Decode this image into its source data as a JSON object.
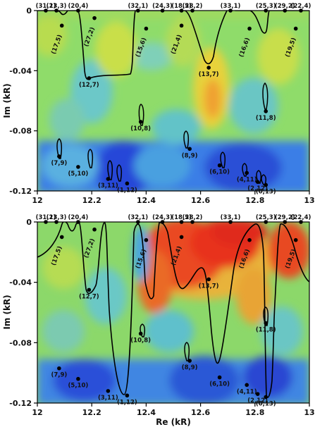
{
  "chart_data": [
    {
      "type": "heatmap",
      "xlabel": "",
      "ylabel": "Im (kR)",
      "xlim": [
        12,
        13
      ],
      "ylim": [
        -0.12,
        0
      ],
      "xticks": [
        12,
        12.2,
        12.4,
        12.6,
        12.8,
        13
      ],
      "yticks": [
        0,
        -0.04,
        -0.08,
        -0.12
      ],
      "xtick_labels": [
        "12",
        "12.2",
        "12.4",
        "12.6",
        "12.8",
        "13"
      ],
      "ytick_labels": [
        "0",
        "-0.04",
        "-0.08",
        "-0.12"
      ],
      "colors": {
        "low": "#1f3fcf",
        "mid": "#5fd66a",
        "high": "#e0201a"
      },
      "labels": [
        {
          "text": "(31,1)",
          "x": 12.0,
          "y": 0.0
        },
        {
          "text": "(23,3)",
          "x": 12.07,
          "y": 0.0
        },
        {
          "text": "(17,5)",
          "x": 12.09,
          "y": -0.01
        },
        {
          "text": "(20,4)",
          "x": 12.15,
          "y": 0.0
        },
        {
          "text": "(27,2)",
          "x": 12.21,
          "y": -0.005
        },
        {
          "text": "(32,1)",
          "x": 12.37,
          "y": 0.0
        },
        {
          "text": "(15,6)",
          "x": 12.4,
          "y": -0.012
        },
        {
          "text": "(24,3)",
          "x": 12.46,
          "y": 0.0
        },
        {
          "text": "(21,4)",
          "x": 12.53,
          "y": -0.01
        },
        {
          "text": "(18,5)",
          "x": 12.53,
          "y": 0.0
        },
        {
          "text": "(28,2)",
          "x": 12.57,
          "y": 0.0
        },
        {
          "text": "(33,1)",
          "x": 12.71,
          "y": 0.0
        },
        {
          "text": "(16,6)",
          "x": 12.78,
          "y": -0.012
        },
        {
          "text": "(25,3)",
          "x": 12.84,
          "y": 0.0
        },
        {
          "text": "(29,2)",
          "x": 12.91,
          "y": 0.0
        },
        {
          "text": "(19,5)",
          "x": 12.95,
          "y": -0.012
        },
        {
          "text": "(22,4)",
          "x": 12.97,
          "y": 0.0
        },
        {
          "text": "(12,7)",
          "x": 12.19,
          "y": -0.045
        },
        {
          "text": "(13,7)",
          "x": 12.63,
          "y": -0.038
        },
        {
          "text": "(10,8)",
          "x": 12.38,
          "y": -0.074
        },
        {
          "text": "(11,8)",
          "x": 12.84,
          "y": -0.067
        },
        {
          "text": "(7,9)",
          "x": 12.08,
          "y": -0.097
        },
        {
          "text": "(8,9)",
          "x": 12.56,
          "y": -0.092
        },
        {
          "text": "(5,10)",
          "x": 12.15,
          "y": -0.104
        },
        {
          "text": "(6,10)",
          "x": 12.67,
          "y": -0.103
        },
        {
          "text": "(3,11)",
          "x": 12.26,
          "y": -0.112
        },
        {
          "text": "(4,11)",
          "x": 12.77,
          "y": -0.108
        },
        {
          "text": "(1,12)",
          "x": 12.33,
          "y": -0.115
        },
        {
          "text": "(2,12)",
          "x": 12.81,
          "y": -0.114
        },
        {
          "text": "(0,13)",
          "x": 12.84,
          "y": -0.116
        }
      ]
    },
    {
      "type": "heatmap",
      "xlabel": "Re (kR)",
      "ylabel": "Im (kR)",
      "xlim": [
        12,
        13
      ],
      "ylim": [
        -0.12,
        0
      ],
      "xticks": [
        12,
        12.2,
        12.4,
        12.6,
        12.8,
        13
      ],
      "yticks": [
        0,
        -0.04,
        -0.08,
        -0.12
      ],
      "xtick_labels": [
        "12",
        "12.2",
        "12.4",
        "12.6",
        "12.8",
        "13"
      ],
      "ytick_labels": [
        "0",
        "-0.04",
        "-0.08",
        "-0.12"
      ],
      "colors": {
        "low": "#1f3fcf",
        "mid": "#5fd66a",
        "high": "#e0201a"
      },
      "labels": [
        {
          "text": "(31,1)",
          "x": 12.0,
          "y": 0.0
        },
        {
          "text": "(23,3)",
          "x": 12.07,
          "y": 0.0
        },
        {
          "text": "(17,5)",
          "x": 12.09,
          "y": -0.01
        },
        {
          "text": "(20,4)",
          "x": 12.15,
          "y": 0.0
        },
        {
          "text": "(27,2)",
          "x": 12.21,
          "y": -0.005
        },
        {
          "text": "(32,1)",
          "x": 12.37,
          "y": 0.0
        },
        {
          "text": "(15,6)",
          "x": 12.4,
          "y": -0.012
        },
        {
          "text": "(24,3)",
          "x": 12.46,
          "y": 0.0
        },
        {
          "text": "(21,4)",
          "x": 12.53,
          "y": -0.01
        },
        {
          "text": "(18,5)",
          "x": 12.53,
          "y": 0.0
        },
        {
          "text": "(28,2)",
          "x": 12.57,
          "y": 0.0
        },
        {
          "text": "(33,1)",
          "x": 12.71,
          "y": 0.0
        },
        {
          "text": "(16,6)",
          "x": 12.78,
          "y": -0.012
        },
        {
          "text": "(25,3)",
          "x": 12.84,
          "y": 0.0
        },
        {
          "text": "(29,2)",
          "x": 12.91,
          "y": 0.0
        },
        {
          "text": "(19,5)",
          "x": 12.95,
          "y": -0.012
        },
        {
          "text": "(22,4)",
          "x": 12.97,
          "y": 0.0
        },
        {
          "text": "(12,7)",
          "x": 12.19,
          "y": -0.045
        },
        {
          "text": "(13,7)",
          "x": 12.63,
          "y": -0.038
        },
        {
          "text": "(10,8)",
          "x": 12.38,
          "y": -0.074
        },
        {
          "text": "(11,8)",
          "x": 12.84,
          "y": -0.067
        },
        {
          "text": "(7,9)",
          "x": 12.08,
          "y": -0.097
        },
        {
          "text": "(8,9)",
          "x": 12.56,
          "y": -0.092
        },
        {
          "text": "(5,10)",
          "x": 12.15,
          "y": -0.104
        },
        {
          "text": "(6,10)",
          "x": 12.67,
          "y": -0.103
        },
        {
          "text": "(3,11)",
          "x": 12.26,
          "y": -0.112
        },
        {
          "text": "(4,11)",
          "x": 12.77,
          "y": -0.108
        },
        {
          "text": "(1,12)",
          "x": 12.33,
          "y": -0.115
        },
        {
          "text": "(2,12)",
          "x": 12.81,
          "y": -0.114
        },
        {
          "text": "(0,13)",
          "x": 12.84,
          "y": -0.116
        }
      ]
    }
  ]
}
